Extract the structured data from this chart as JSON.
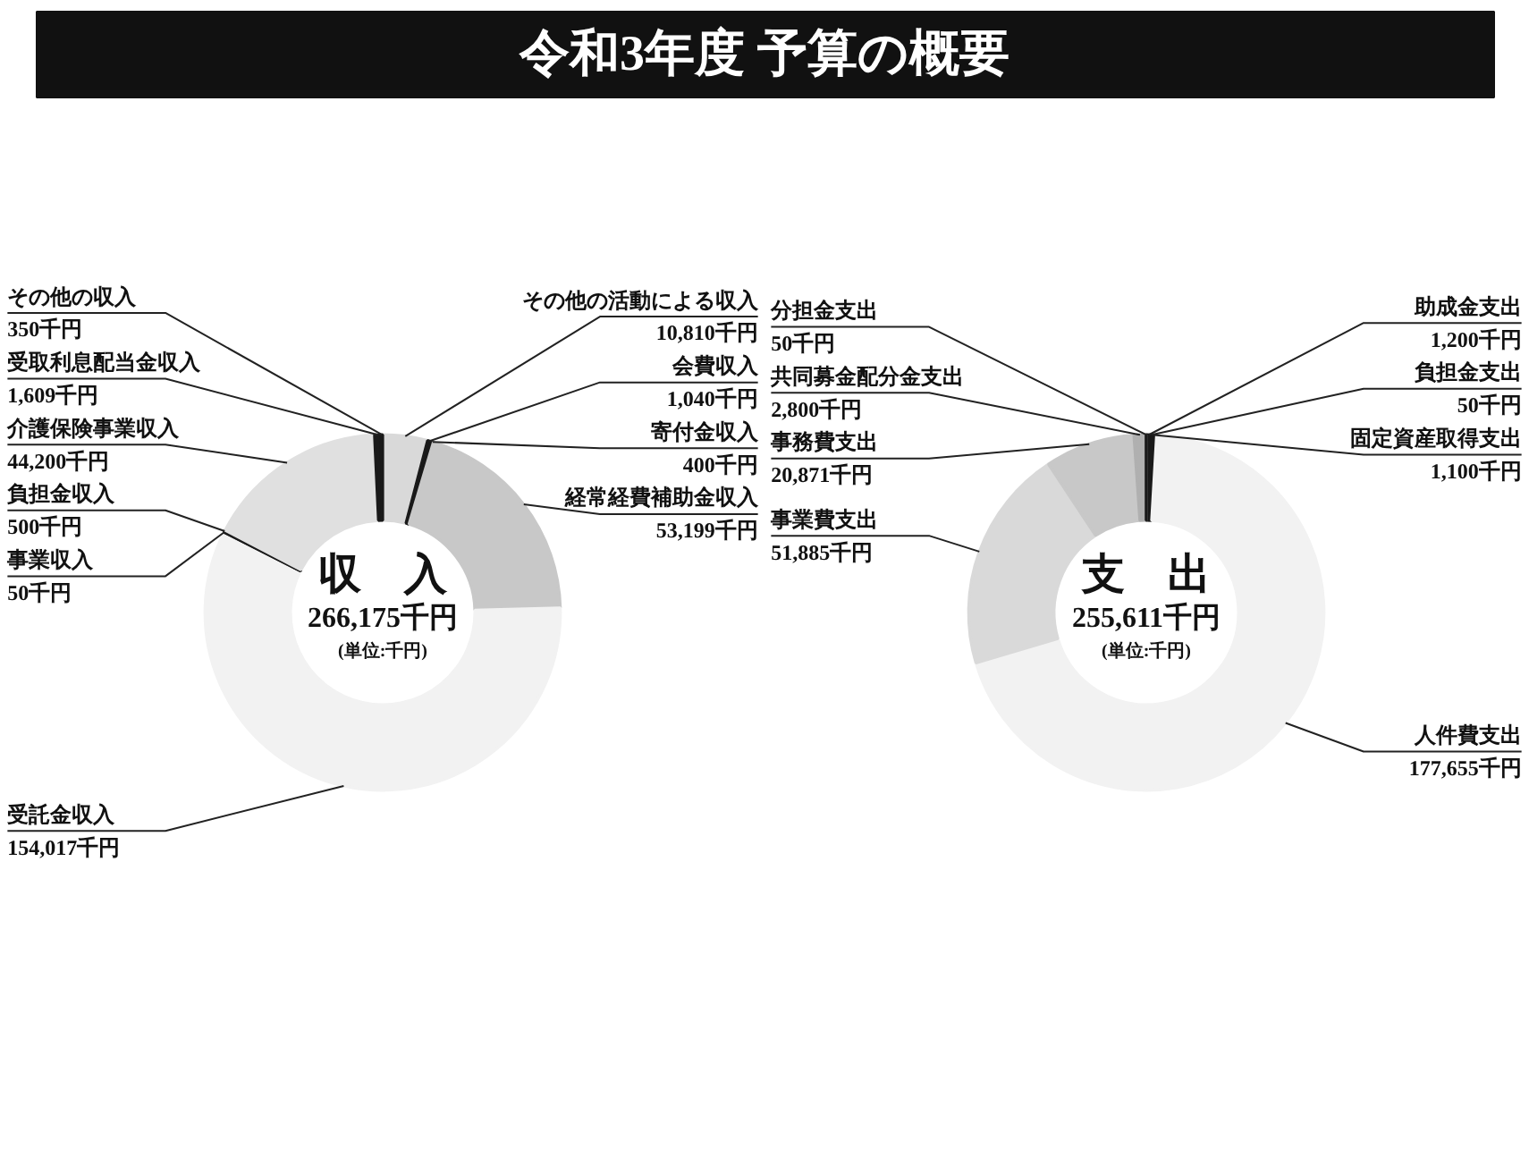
{
  "chart_data": [
    {
      "type": "donut",
      "title": "令和3年度 予算の概要",
      "categories": [
        "その他の活動による収入",
        "会費収入",
        "寄付金収入",
        "経常経費補助金収入",
        "受託金収入",
        "事業収入",
        "負担金収入",
        "介護保険事業収入",
        "受取利息配当金収入",
        "その他の収入"
      ],
      "values": [
        10810,
        1040,
        400,
        53199,
        154017,
        50,
        500,
        44200,
        1609,
        350
      ],
      "value_labels": [
        "10,810千円",
        "1,040千円",
        "400千円",
        "53,199千円",
        "154,017千円",
        "50千円",
        "500千円",
        "44,200千円",
        "1,609千円",
        "350千円"
      ],
      "colors": [
        "#d9d9d9",
        "#1a1a1a",
        "#1a1a1a",
        "#c8c8c8",
        "#f2f2f2",
        "#1a1a1a",
        "#1a1a1a",
        "#e0e0e0",
        "#1a1a1a",
        "#1a1a1a"
      ],
      "annotations": [
        "収　入",
        "266,175千円",
        "(単位:千円)"
      ]
    },
    {
      "type": "donut",
      "categories": [
        "助成金支出",
        "負担金支出",
        "固定資産取得支出",
        "人件費支出",
        "事業費支出",
        "事務費支出",
        "共同募金配分金支出",
        "分担金支出"
      ],
      "values": [
        1200,
        50,
        1100,
        177655,
        51885,
        20871,
        2800,
        50
      ],
      "value_labels": [
        "1,200千円",
        "50千円",
        "1,100千円",
        "177,655千円",
        "51,885千円",
        "20,871千円",
        "2,800千円",
        "50千円"
      ],
      "colors": [
        "#1a1a1a",
        "#1a1a1a",
        "#1a1a1a",
        "#f2f2f2",
        "#d9d9d9",
        "#c8c8c8",
        "#b0b0b0",
        "#1a1a1a"
      ],
      "annotations": [
        "支　出",
        "255,611千円",
        "(単位:千円)"
      ]
    }
  ]
}
